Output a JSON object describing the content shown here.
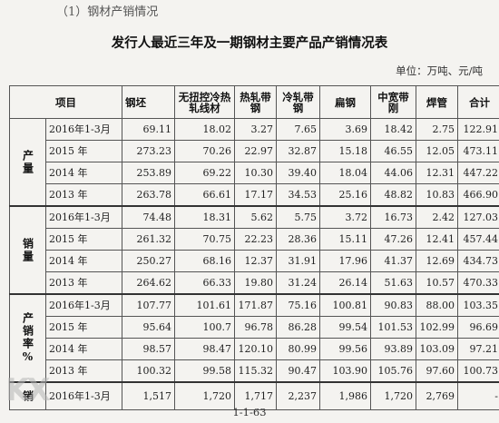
{
  "section_heading": "（1）钢材产销情况",
  "title": "发行人最近三年及一期钢材主要产品产销情况表",
  "unit": "单位：万吨、元/吨",
  "headers": {
    "item": "项目",
    "c1": "钢坯",
    "c2": "无扭控冷热轧线材",
    "c3": "热轧带钢",
    "c4": "冷轧带钢",
    "c5": "扁钢",
    "c6": "中宽带刚",
    "c7": "焊管",
    "c8": "合计"
  },
  "groups": [
    {
      "label": "产量",
      "rows": [
        {
          "period": "2016年1-3月",
          "values": [
            "69.11",
            "18.02",
            "3.27",
            "7.65",
            "3.69",
            "18.42",
            "2.75",
            "122.91"
          ]
        },
        {
          "period": "2015 年",
          "values": [
            "273.23",
            "70.26",
            "22.97",
            "32.87",
            "15.18",
            "46.55",
            "12.05",
            "473.11"
          ]
        },
        {
          "period": "2014 年",
          "values": [
            "253.89",
            "69.22",
            "10.30",
            "39.40",
            "18.04",
            "44.06",
            "12.31",
            "447.22"
          ]
        },
        {
          "period": "2013 年",
          "values": [
            "263.78",
            "66.61",
            "17.17",
            "34.53",
            "25.16",
            "48.82",
            "10.83",
            "466.90"
          ]
        }
      ]
    },
    {
      "label": "销量",
      "rows": [
        {
          "period": "2016年1-3月",
          "values": [
            "74.48",
            "18.31",
            "5.62",
            "5.75",
            "3.72",
            "16.73",
            "2.42",
            "127.03"
          ]
        },
        {
          "period": "2015 年",
          "values": [
            "261.32",
            "70.75",
            "22.23",
            "28.36",
            "15.11",
            "47.26",
            "12.41",
            "457.44"
          ]
        },
        {
          "period": "2014 年",
          "values": [
            "250.27",
            "68.16",
            "12.37",
            "31.91",
            "17.96",
            "41.37",
            "12.69",
            "434.73"
          ]
        },
        {
          "period": "2013 年",
          "values": [
            "264.62",
            "66.33",
            "19.80",
            "31.24",
            "26.14",
            "51.63",
            "10.57",
            "470.33"
          ]
        }
      ]
    },
    {
      "label": "产销率%",
      "rows": [
        {
          "period": "2016年1-3月",
          "values": [
            "107.77",
            "101.61",
            "171.87",
            "75.16",
            "100.81",
            "90.83",
            "88.00",
            "103.35"
          ]
        },
        {
          "period": "2015 年",
          "values": [
            "95.64",
            "100.7",
            "96.78",
            "86.28",
            "99.54",
            "101.53",
            "102.99",
            "96.69"
          ]
        },
        {
          "period": "2014 年",
          "values": [
            "98.57",
            "98.47",
            "120.10",
            "80.99",
            "99.56",
            "93.89",
            "103.09",
            "97.21"
          ]
        },
        {
          "period": "2013 年",
          "values": [
            "100.32",
            "99.58",
            "115.32",
            "90.47",
            "103.90",
            "105.76",
            "97.60",
            "100.73"
          ]
        }
      ]
    },
    {
      "label": "销",
      "rows": [
        {
          "period": "2016年1-3月",
          "values": [
            "1,517",
            "1,720",
            "1,717",
            "2,237",
            "1,986",
            "1,720",
            "2,769",
            "-"
          ]
        }
      ]
    }
  ],
  "page_number": "1-1-63",
  "watermark": "KX"
}
